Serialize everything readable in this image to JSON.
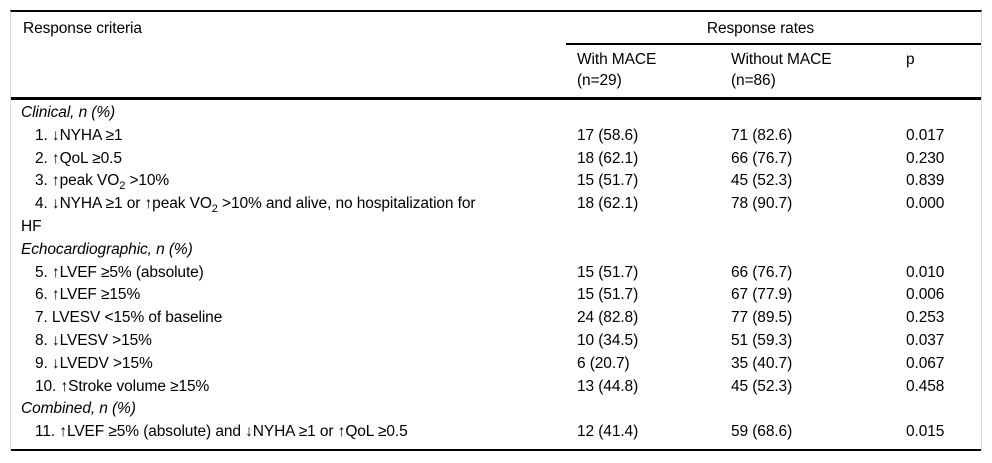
{
  "table": {
    "title_col": "Response criteria",
    "group_header": "Response rates",
    "columns": [
      {
        "label": "With MACE",
        "sub": "(n=29)"
      },
      {
        "label": "Without MACE",
        "sub": "(n=86)"
      },
      {
        "label": "p",
        "sub": ""
      }
    ],
    "colors": {
      "rule": "#000000",
      "frame": "#d9d9d9",
      "text": "#000000",
      "background": "#ffffff"
    },
    "sections": [
      {
        "title": "Clinical, n (%)",
        "rows": [
          {
            "label": "1. ↓NYHA ≥1",
            "values": [
              "17 (58.6)",
              "71 (82.6)",
              "0.017"
            ]
          },
          {
            "label": "2. ↑QoL ≥0.5",
            "values": [
              "18 (62.1)",
              "66 (76.7)",
              "0.230"
            ]
          },
          {
            "label": [
              {
                "t": "3. ↑peak VO"
              },
              {
                "t": "2",
                "sub": true
              },
              {
                "t": " >10%"
              }
            ],
            "values": [
              "15 (51.7)",
              "45 (52.3)",
              "0.839"
            ]
          },
          {
            "label": [
              {
                "t": "4. ↓NYHA ≥1 or ↑peak VO"
              },
              {
                "t": "2",
                "sub": true
              },
              {
                "t": " >10% and alive, no hospitalization for"
              },
              {
                "br": true
              },
              {
                "t": "HF"
              }
            ],
            "values": [
              "18 (62.1)",
              "78 (90.7)",
              "0.000"
            ]
          }
        ]
      },
      {
        "title": "Echocardiographic, n (%)",
        "rows": [
          {
            "label": "5. ↑LVEF ≥5% (absolute)",
            "values": [
              "15 (51.7)",
              "66 (76.7)",
              "0.010"
            ]
          },
          {
            "label": "6. ↑LVEF ≥15%",
            "values": [
              "15 (51.7)",
              "67 (77.9)",
              "0.006"
            ]
          },
          {
            "label": "7. LVESV <15% of baseline",
            "values": [
              "24 (82.8)",
              "77 (89.5)",
              "0.253"
            ]
          },
          {
            "label": "8. ↓LVESV >15%",
            "values": [
              "10 (34.5)",
              "51 (59.3)",
              "0.037"
            ]
          },
          {
            "label": "9. ↓LVEDV >15%",
            "values": [
              "6 (20.7)",
              "35 (40.7)",
              "0.067"
            ]
          },
          {
            "label": "10. ↑Stroke volume ≥15%",
            "values": [
              "13 (44.8)",
              "45 (52.3)",
              "0.458"
            ]
          }
        ]
      },
      {
        "title": "Combined, n (%)",
        "rows": [
          {
            "label": "11. ↑LVEF ≥5% (absolute) and ↓NYHA ≥1 or ↑QoL ≥0.5",
            "values": [
              "12 (41.4)",
              "59 (68.6)",
              "0.015"
            ]
          }
        ]
      }
    ]
  }
}
